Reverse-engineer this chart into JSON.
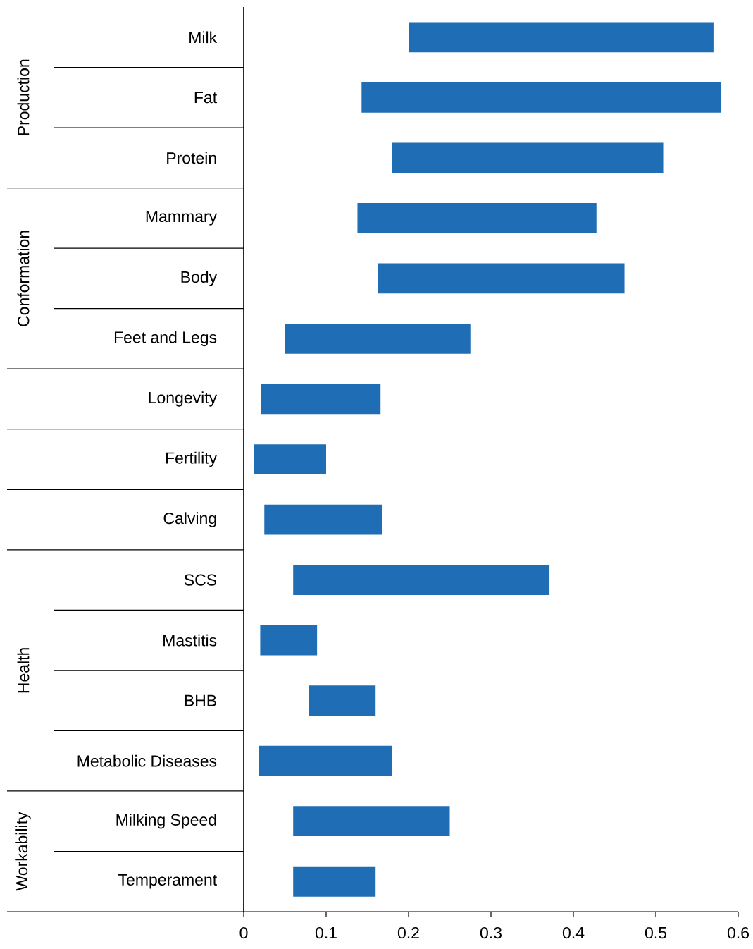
{
  "chart_data": {
    "type": "bar",
    "orientation": "horizontal",
    "categories": [
      "Milk",
      "Fat",
      "Protein",
      "Mammary",
      "Body",
      "Feet and Legs",
      "Longevity",
      "Fertility",
      "Calving",
      "SCS",
      "Mastitis",
      "BHB",
      "Metabolic Diseases",
      "Milking Speed",
      "Temperament"
    ],
    "base": [
      0.2,
      0.143,
      0.18,
      0.138,
      0.163,
      0.05,
      0.021,
      0.012,
      0.025,
      0.06,
      0.02,
      0.079,
      0.018,
      0.06,
      0.06
    ],
    "values": [
      0.37,
      0.436,
      0.329,
      0.29,
      0.299,
      0.225,
      0.145,
      0.088,
      0.143,
      0.311,
      0.069,
      0.081,
      0.162,
      0.19,
      0.1
    ],
    "color": "#1f6eb5",
    "xlim": [
      0,
      0.6
    ],
    "xticks": [
      0,
      0.1,
      0.2,
      0.3,
      0.4,
      0.5,
      0.6
    ],
    "annotations": [
      "Production",
      "Conformation",
      "Health",
      "Workability"
    ]
  }
}
